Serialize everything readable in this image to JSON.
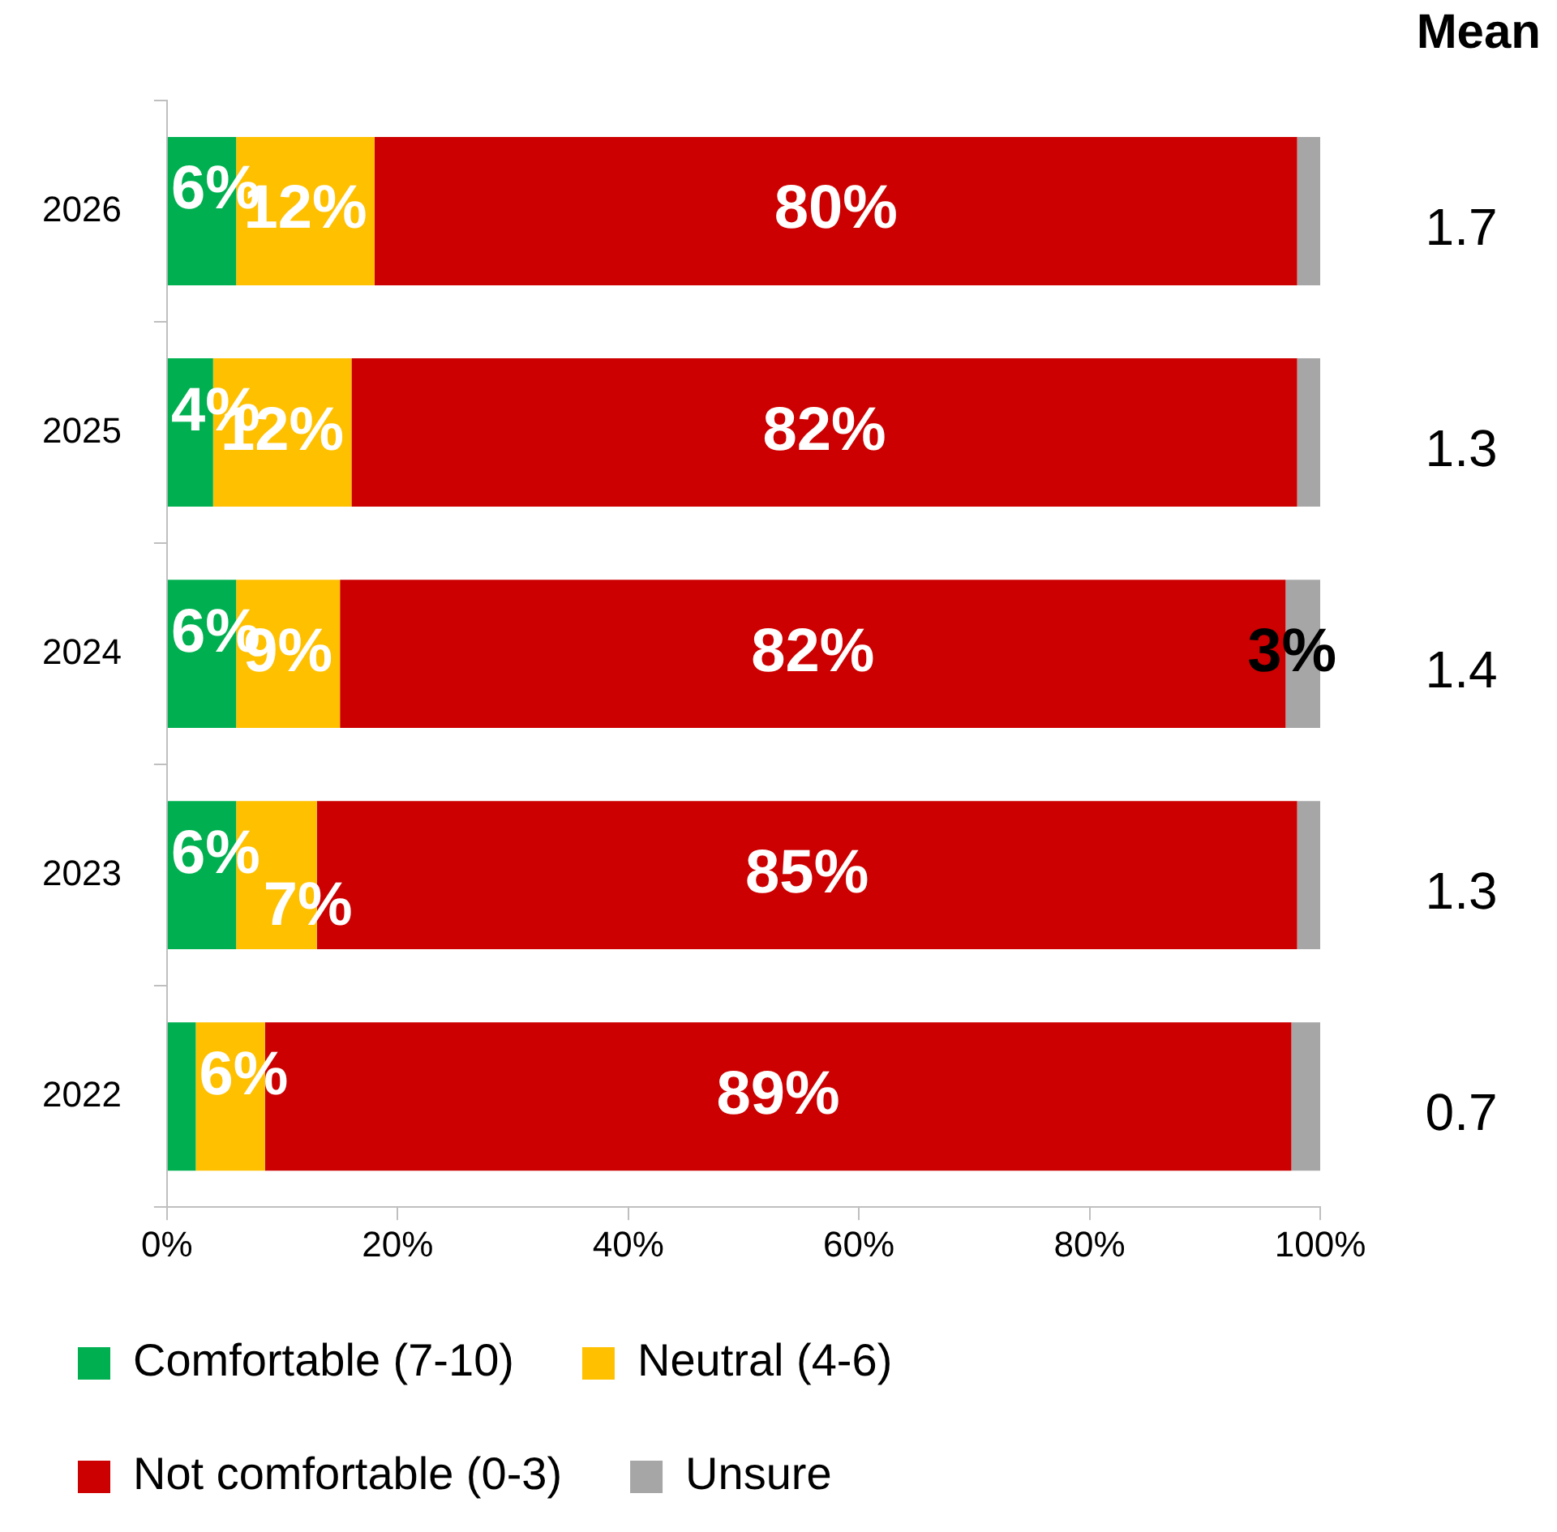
{
  "chart_data": {
    "type": "bar",
    "orientation": "horizontal",
    "stacked": true,
    "categories": [
      "2026",
      "2025",
      "2024",
      "2023",
      "2022"
    ],
    "series": [
      {
        "name": "Comfortable (7-10)",
        "color": "#00b050",
        "values": [
          6,
          4,
          6,
          6,
          2.5
        ],
        "value_labels": [
          "6%",
          "4%",
          "6%",
          "6%",
          null
        ]
      },
      {
        "name": "Neutral (4-6)",
        "color": "#ffc000",
        "values": [
          12,
          12,
          9,
          7,
          6
        ],
        "value_labels": [
          "12%",
          "12%",
          "9%",
          "7%",
          "6%"
        ]
      },
      {
        "name": "Not comfortable (0-3)",
        "color": "#cc0000",
        "values": [
          80,
          82,
          82,
          85,
          89
        ],
        "value_labels": [
          "80%",
          "82%",
          "82%",
          "85%",
          "89%"
        ]
      },
      {
        "name": "Unsure",
        "color": "#a6a6a6",
        "values": [
          2,
          2,
          3,
          2,
          2.5
        ],
        "value_labels": [
          null,
          null,
          "3%",
          null,
          null
        ]
      }
    ],
    "xlim": [
      0,
      100
    ],
    "xticks": [
      {
        "value": 0,
        "label": "0%"
      },
      {
        "value": 20,
        "label": "20%"
      },
      {
        "value": 40,
        "label": "40%"
      },
      {
        "value": 60,
        "label": "60%"
      },
      {
        "value": 80,
        "label": "80%"
      },
      {
        "value": 100,
        "label": "100%"
      }
    ],
    "grid": false,
    "legend": "bottom",
    "annotations": [
      "Mean",
      "1.7",
      "1.3",
      "1.4",
      "1.3",
      "0.7"
    ]
  }
}
